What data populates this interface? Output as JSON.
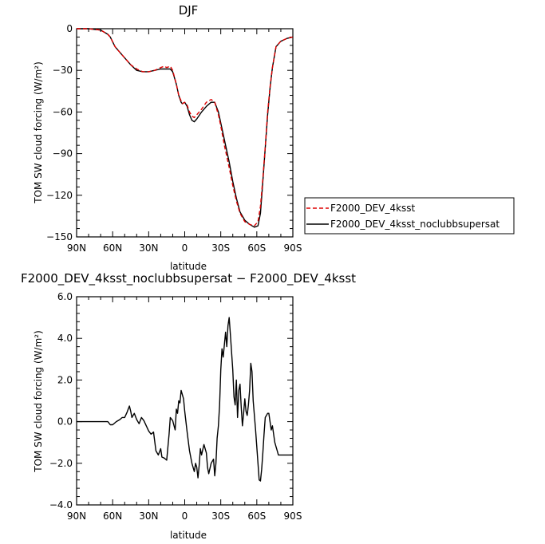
{
  "chart_data": [
    {
      "type": "line",
      "title": "DJF",
      "xlabel": "latitude",
      "ylabel": "TOM SW cloud forcing (W/m²)",
      "xlim": [
        90,
        -90
      ],
      "ylim": [
        -150,
        0
      ],
      "xticks": [
        90,
        60,
        30,
        0,
        -30,
        -60,
        -90
      ],
      "xtick_labels": [
        "90N",
        "60N",
        "30N",
        "0",
        "30S",
        "60S",
        "90S"
      ],
      "yticks": [
        0,
        -30,
        -60,
        -90,
        -120,
        -150
      ],
      "ytick_labels": [
        "0",
        "−30",
        "−60",
        "−90",
        "−120",
        "−150"
      ],
      "legend_position": "right",
      "series": [
        {
          "name": "F2000_DEV_4ksst",
          "color": "#dd0000",
          "dash": "dashed",
          "x": [
            90,
            80,
            70,
            64,
            62,
            58,
            52,
            45,
            40,
            35,
            30,
            25,
            20,
            17,
            15,
            12,
            10,
            7,
            5,
            3,
            2,
            0,
            -2,
            -4,
            -6,
            -8,
            -10,
            -14,
            -18,
            -22,
            -25,
            -28,
            -30,
            -33,
            -37,
            -40,
            -43,
            -46,
            -50,
            -54,
            -58,
            -61,
            -63,
            -65,
            -67,
            -69,
            -71,
            -73,
            -76,
            -80,
            -85,
            -90
          ],
          "y": [
            0,
            0,
            -1,
            -4,
            -6,
            -13,
            -19,
            -26,
            -29,
            -31,
            -31,
            -30,
            -28,
            -27,
            -28,
            -27,
            -30,
            -40,
            -48,
            -52,
            -54,
            -53,
            -55,
            -60,
            -63,
            -64,
            -62,
            -58,
            -53,
            -51,
            -53,
            -62,
            -70,
            -84,
            -100,
            -113,
            -124,
            -133,
            -139,
            -141,
            -142,
            -139,
            -128,
            -108,
            -85,
            -60,
            -42,
            -28,
            -13,
            -9,
            -7,
            -6
          ]
        },
        {
          "name": "F2000_DEV_4ksst_noclubbsupersat",
          "color": "#000000",
          "dash": "solid",
          "x": [
            90,
            80,
            70,
            64,
            62,
            58,
            52,
            45,
            40,
            35,
            30,
            25,
            20,
            17,
            15,
            12,
            10,
            7,
            5,
            3,
            2,
            0,
            -2,
            -4,
            -6,
            -8,
            -10,
            -14,
            -18,
            -22,
            -25,
            -28,
            -30,
            -33,
            -37,
            -40,
            -43,
            -46,
            -50,
            -54,
            -58,
            -61,
            -63,
            -65,
            -67,
            -69,
            -71,
            -73,
            -76,
            -80,
            -85,
            -90
          ],
          "y": [
            0,
            0,
            -1,
            -4,
            -6,
            -13,
            -19,
            -26,
            -30,
            -31,
            -31,
            -30,
            -29,
            -29,
            -29,
            -29,
            -31,
            -40,
            -48,
            -53,
            -54,
            -53,
            -56,
            -62,
            -66,
            -67,
            -65,
            -60,
            -56,
            -53,
            -53,
            -60,
            -68,
            -80,
            -96,
            -110,
            -122,
            -132,
            -138,
            -141,
            -143,
            -142,
            -133,
            -110,
            -86,
            -62,
            -43,
            -28,
            -13,
            -9,
            -7,
            -6
          ]
        }
      ]
    },
    {
      "type": "line",
      "title": "F2000_DEV_4ksst_noclubbsupersat − F2000_DEV_4ksst",
      "xlabel": "latitude",
      "ylabel": "TOM SW cloud forcing (W/m²)",
      "xlim": [
        90,
        -90
      ],
      "ylim": [
        -4,
        6
      ],
      "xticks": [
        90,
        60,
        30,
        0,
        -30,
        -60,
        -90
      ],
      "xtick_labels": [
        "90N",
        "60N",
        "30N",
        "0",
        "30S",
        "60S",
        "90S"
      ],
      "yticks": [
        6,
        4,
        2,
        0,
        -2,
        -4
      ],
      "ytick_labels": [
        "6.0",
        "4.0",
        "2.0",
        "0.0",
        "−2.0",
        "−4.0"
      ],
      "series": [
        {
          "color": "#000000",
          "dash": "solid",
          "x": [
            90,
            80,
            70,
            64,
            62,
            60,
            57,
            54,
            52,
            50,
            48,
            47,
            46,
            45,
            44,
            42,
            40,
            38,
            36,
            34,
            32,
            30,
            28,
            26,
            24,
            22,
            20,
            19,
            17,
            15,
            13,
            12,
            10,
            8,
            7,
            6,
            5,
            4,
            3,
            2,
            1,
            0,
            -2,
            -4,
            -6,
            -8,
            -9,
            -10,
            -11,
            -12,
            -13,
            -14,
            -16,
            -18,
            -19,
            -20,
            -22,
            -24,
            -25,
            -26,
            -27,
            -28,
            -29,
            -30,
            -31,
            -32,
            -33,
            -34,
            -35,
            -36,
            -37,
            -38,
            -40,
            -41,
            -42,
            -43,
            -44,
            -45,
            -46,
            -47,
            -48,
            -49,
            -50,
            -51,
            -52,
            -53,
            -54,
            -55,
            -56,
            -57,
            -58,
            -59,
            -60,
            -61,
            -62,
            -63,
            -64,
            -65,
            -66,
            -67,
            -68,
            -69,
            -70,
            -71,
            -72,
            -73,
            -74,
            -75,
            -76,
            -77,
            -78,
            -79,
            -80,
            -81,
            -82,
            -83,
            -84,
            -85,
            -86,
            -87,
            -88,
            -89,
            -90
          ],
          "y": [
            0,
            0,
            0,
            0,
            -0.15,
            -0.15,
            0,
            0.1,
            0.2,
            0.2,
            0.45,
            0.6,
            0.75,
            0.5,
            0.2,
            0.4,
            0.1,
            -0.1,
            0.2,
            0.05,
            -0.2,
            -0.45,
            -0.6,
            -0.5,
            -1.4,
            -1.6,
            -1.3,
            -1.7,
            -1.75,
            -1.85,
            -0.6,
            0.2,
            0.05,
            -0.4,
            0.6,
            0.4,
            1.0,
            0.9,
            1.5,
            1.3,
            1.1,
            0.5,
            -0.5,
            -1.4,
            -2.0,
            -2.4,
            -2.0,
            -2.2,
            -2.7,
            -2.1,
            -1.3,
            -1.6,
            -1.1,
            -1.5,
            -2.2,
            -2.5,
            -2.0,
            -1.8,
            -2.6,
            -2.0,
            -0.8,
            -0.2,
            0.8,
            2.5,
            3.5,
            3.1,
            3.7,
            4.3,
            3.6,
            4.6,
            5.0,
            4.2,
            2.5,
            1.2,
            0.8,
            2.0,
            0.2,
            1.5,
            1.8,
            0.7,
            -0.2,
            0.4,
            1.1,
            0.5,
            0.3,
            0.8,
            1.5,
            2.8,
            2.4,
            1.0,
            0.3,
            -0.4,
            -1.2,
            -2.0,
            -2.8,
            -2.85,
            -2.3,
            -1.5,
            -0.6,
            0.2,
            0.3,
            0.4,
            0.4,
            0.0,
            -0.4,
            -0.2,
            -0.6,
            -1.0,
            -1.2,
            -1.4,
            -1.6,
            -1.6,
            -1.6,
            -1.6,
            -1.6,
            -1.6,
            -1.6,
            -1.6,
            -1.6,
            -1.6,
            -1.6,
            -1.6,
            -1.6
          ]
        }
      ]
    }
  ]
}
